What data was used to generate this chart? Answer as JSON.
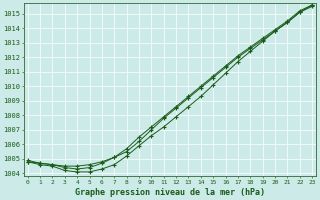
{
  "title": "Graphe pression niveau de la mer (hPa)",
  "bg_color": "#cceae8",
  "grid_color": "#ffffff",
  "line_color": "#1a5c1a",
  "x_min": 0,
  "x_max": 23,
  "y_min": 1003.8,
  "y_max": 1015.7,
  "y_ticks": [
    1004,
    1005,
    1006,
    1007,
    1008,
    1009,
    1010,
    1011,
    1012,
    1013,
    1014,
    1015
  ],
  "series1": [
    1004.8,
    1004.7,
    1004.6,
    1004.5,
    1004.5,
    1004.6,
    1004.8,
    1005.1,
    1005.5,
    1006.2,
    1007.0,
    1007.8,
    1008.5,
    1009.2,
    1009.9,
    1010.6,
    1011.3,
    1012.0,
    1012.6,
    1013.2,
    1013.8,
    1014.4,
    1015.1,
    1015.5
  ],
  "series2": [
    1004.8,
    1004.6,
    1004.5,
    1004.2,
    1004.1,
    1004.1,
    1004.3,
    1004.6,
    1005.2,
    1005.9,
    1006.6,
    1007.2,
    1007.9,
    1008.6,
    1009.3,
    1010.1,
    1010.9,
    1011.7,
    1012.4,
    1013.1,
    1013.8,
    1014.4,
    1015.1,
    1015.6
  ],
  "series3": [
    1004.9,
    1004.7,
    1004.6,
    1004.4,
    1004.3,
    1004.4,
    1004.7,
    1005.1,
    1005.7,
    1006.5,
    1007.2,
    1007.9,
    1008.6,
    1009.3,
    1010.0,
    1010.7,
    1011.4,
    1012.1,
    1012.7,
    1013.3,
    1013.9,
    1014.5,
    1015.2,
    1015.6
  ]
}
